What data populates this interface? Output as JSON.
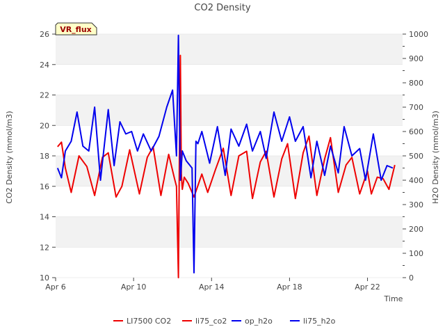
{
  "chart_data": {
    "type": "line",
    "title": "CO2 Density",
    "xlabel": "Time",
    "ylabel": "CO2 Density (mmol/m3)",
    "y2label": "H2O Density (mmol/m3)",
    "badge": "VR_flux",
    "xlim": [
      6,
      23.8
    ],
    "ylim": [
      10,
      26
    ],
    "y2lim": [
      0,
      1000
    ],
    "x_ticks": [
      {
        "value": 6,
        "label": "Apr 6"
      },
      {
        "value": 10,
        "label": "Apr 10"
      },
      {
        "value": 14,
        "label": "Apr 14"
      },
      {
        "value": 18,
        "label": "Apr 18"
      },
      {
        "value": 22,
        "label": "Apr 22"
      }
    ],
    "y_ticks": [
      10,
      12,
      14,
      16,
      18,
      20,
      22,
      24,
      26
    ],
    "y2_ticks": [
      0,
      100,
      200,
      300,
      400,
      500,
      600,
      700,
      800,
      900,
      1000
    ],
    "legend": [
      {
        "label": "LI7500 CO2",
        "color": "#ee0000"
      },
      {
        "label": "li75_co2",
        "color": "#ee0000"
      },
      {
        "label": "op_h2o",
        "color": "#0000ee"
      },
      {
        "label": "li75_h2o",
        "color": "#0000ee"
      }
    ],
    "series": [
      {
        "name": "li75_co2",
        "axis": "left",
        "color": "#ee0000",
        "x": [
          6.1,
          6.3,
          6.5,
          6.8,
          7.2,
          7.6,
          8.0,
          8.4,
          8.7,
          9.1,
          9.4,
          9.8,
          10.3,
          10.7,
          11.0,
          11.4,
          11.8,
          12.1,
          12.2,
          12.3,
          12.35,
          12.4,
          12.45,
          12.5,
          12.6,
          12.8,
          13.1,
          13.5,
          13.8,
          14.2,
          14.6,
          15.0,
          15.4,
          15.8,
          16.1,
          16.5,
          16.8,
          17.2,
          17.6,
          17.9,
          18.3,
          18.7,
          19.0,
          19.4,
          19.8,
          20.1,
          20.5,
          20.9,
          21.2,
          21.6,
          22.0,
          22.2,
          22.5,
          22.8,
          23.1,
          23.4
        ],
        "y": [
          18.6,
          18.9,
          17.2,
          15.6,
          18.0,
          17.3,
          15.4,
          17.9,
          18.2,
          15.3,
          16.0,
          18.4,
          15.5,
          17.9,
          18.6,
          15.4,
          18.1,
          16.5,
          16.0,
          10.0,
          18.0,
          24.6,
          16.8,
          15.8,
          16.6,
          16.2,
          15.3,
          16.8,
          15.6,
          17.1,
          18.5,
          15.4,
          18.0,
          18.3,
          15.2,
          17.6,
          18.3,
          15.3,
          17.8,
          18.8,
          15.2,
          18.2,
          19.3,
          15.4,
          17.8,
          19.2,
          15.6,
          17.4,
          17.9,
          15.5,
          17.0,
          15.5,
          16.6,
          16.5,
          15.8,
          17.4
        ]
      },
      {
        "name": "li75_h2o",
        "axis": "right",
        "color": "#0000ee",
        "x": [
          6.1,
          6.3,
          6.5,
          6.8,
          7.1,
          7.4,
          7.7,
          8.0,
          8.3,
          8.7,
          9.0,
          9.3,
          9.6,
          9.9,
          10.2,
          10.5,
          10.9,
          11.3,
          11.7,
          12.0,
          12.2,
          12.3,
          12.4,
          12.5,
          12.7,
          13.0,
          13.1,
          13.2,
          13.3,
          13.5,
          13.9,
          14.3,
          14.7,
          15.0,
          15.4,
          15.8,
          16.1,
          16.5,
          16.8,
          17.2,
          17.6,
          18.0,
          18.3,
          18.7,
          19.1,
          19.4,
          19.8,
          20.1,
          20.5,
          20.8,
          21.2,
          21.6,
          21.9,
          22.3,
          22.7,
          23.0,
          23.3
        ],
        "y": [
          450,
          410,
          520,
          560,
          680,
          540,
          520,
          700,
          400,
          690,
          460,
          640,
          590,
          600,
          520,
          590,
          520,
          580,
          700,
          770,
          500,
          995,
          400,
          520,
          480,
          450,
          20,
          560,
          550,
          600,
          470,
          620,
          420,
          610,
          540,
          630,
          520,
          600,
          490,
          680,
          560,
          660,
          560,
          620,
          410,
          560,
          420,
          540,
          430,
          620,
          500,
          530,
          400,
          590,
          400,
          460,
          450
        ]
      }
    ]
  }
}
